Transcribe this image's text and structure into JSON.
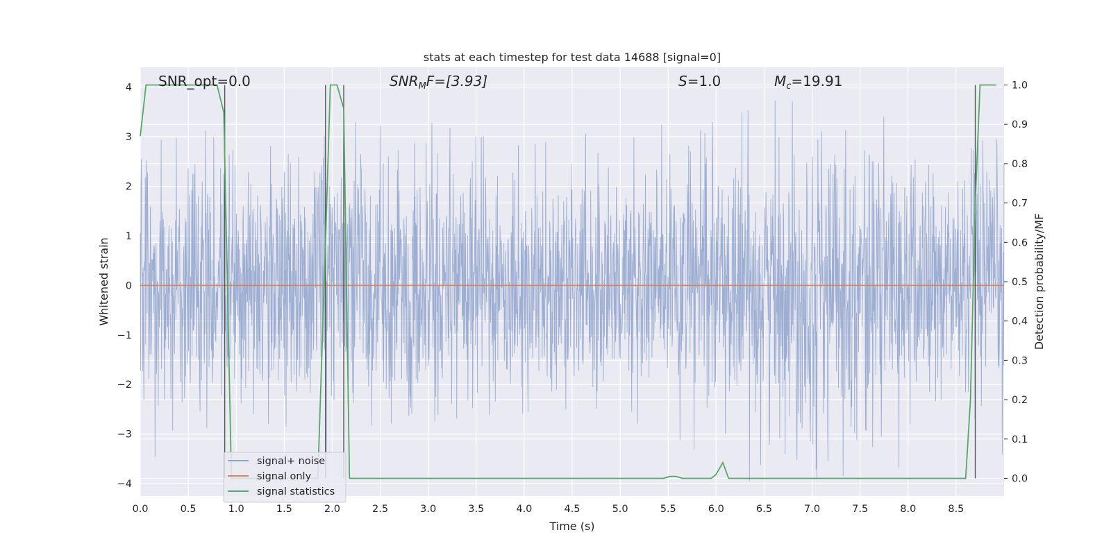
{
  "chart_data": {
    "type": "line",
    "title": "stats at each timestep for test data 14688 [signal=0]",
    "xlabel": "Time (s)",
    "ylabel_left": "Whitened strain",
    "ylabel_right": "Detection probability/MF",
    "xlim": [
      0.0,
      9.0
    ],
    "ylim_left": [
      -4.25,
      4.4
    ],
    "ylim_right": [
      -0.045,
      1.045
    ],
    "x_ticks": [
      "0.0",
      "0.5",
      "1.0",
      "1.5",
      "2.0",
      "2.5",
      "3.0",
      "3.5",
      "4.0",
      "4.5",
      "5.0",
      "5.5",
      "6.0",
      "6.5",
      "7.0",
      "7.5",
      "8.0",
      "8.5"
    ],
    "x_tick_values": [
      0.0,
      0.5,
      1.0,
      1.5,
      2.0,
      2.5,
      3.0,
      3.5,
      4.0,
      4.5,
      5.0,
      5.5,
      6.0,
      6.5,
      7.0,
      7.5,
      8.0,
      8.5
    ],
    "y_left_ticks": [
      "4",
      "3",
      "2",
      "1",
      "0",
      "−1",
      "−2",
      "−3",
      "−4"
    ],
    "y_left_tick_values": [
      4,
      3,
      2,
      1,
      0,
      -1,
      -2,
      -3,
      -4
    ],
    "y_right_ticks": [
      "1.0",
      "0.9",
      "0.8",
      "0.7",
      "0.6",
      "0.5",
      "0.4",
      "0.3",
      "0.2",
      "0.1",
      "0.0"
    ],
    "y_right_tick_values": [
      1.0,
      0.9,
      0.8,
      0.7,
      0.6,
      0.5,
      0.4,
      0.3,
      0.2,
      0.1,
      0.0
    ],
    "grid": true,
    "legend_position": "lower-left",
    "annotations": {
      "snr_opt": "SNR_opt=0.0",
      "snr_mf_base": "SNR",
      "snr_mf_sub": "M",
      "snr_mf_rest": "F=[3.93]",
      "s_base": "S",
      "s_rest": "=1.0",
      "mc_base": "M",
      "mc_sub": "c",
      "mc_rest": "=19.91"
    },
    "series": [
      {
        "name": "signal+ noise",
        "color": "#8fa3cc",
        "amplitude_envelope": [
          [
            0.0,
            3.0
          ],
          [
            0.5,
            3.2
          ],
          [
            1.0,
            3.0
          ],
          [
            1.5,
            3.1
          ],
          [
            2.0,
            3.3
          ],
          [
            3.0,
            3.3
          ],
          [
            4.0,
            2.8
          ],
          [
            5.0,
            3.2
          ],
          [
            6.0,
            3.3
          ],
          [
            7.0,
            4.0
          ],
          [
            8.0,
            3.2
          ],
          [
            8.5,
            3.3
          ],
          [
            9.0,
            3.0
          ]
        ]
      },
      {
        "name": "signal only",
        "color": "#dd8452",
        "values": [
          0.0
        ]
      },
      {
        "name": "signal statistics",
        "color": "#55a868",
        "x": [
          0.0,
          0.06,
          0.12,
          0.8,
          0.87,
          0.95,
          1.0,
          1.85,
          1.93,
          1.98,
          2.05,
          2.12,
          2.18,
          2.3,
          2.38,
          5.45,
          5.52,
          5.58,
          5.65,
          5.95,
          6.0,
          6.07,
          6.13,
          6.2,
          8.6,
          8.65,
          8.7,
          8.75,
          8.8,
          8.92
        ],
        "values": [
          0.87,
          1.0,
          1.0,
          1.0,
          0.93,
          0.0,
          0.0,
          0.0,
          0.6,
          1.0,
          1.0,
          0.94,
          0.0,
          0.0,
          0.0,
          0.0,
          0.005,
          0.005,
          0.0,
          0.0,
          0.01,
          0.04,
          0.0,
          0.0,
          0.0,
          0.2,
          0.7,
          1.0,
          1.0,
          1.0
        ]
      }
    ],
    "vertical_lines": [
      0.88,
      1.93,
      2.12,
      8.7
    ]
  }
}
